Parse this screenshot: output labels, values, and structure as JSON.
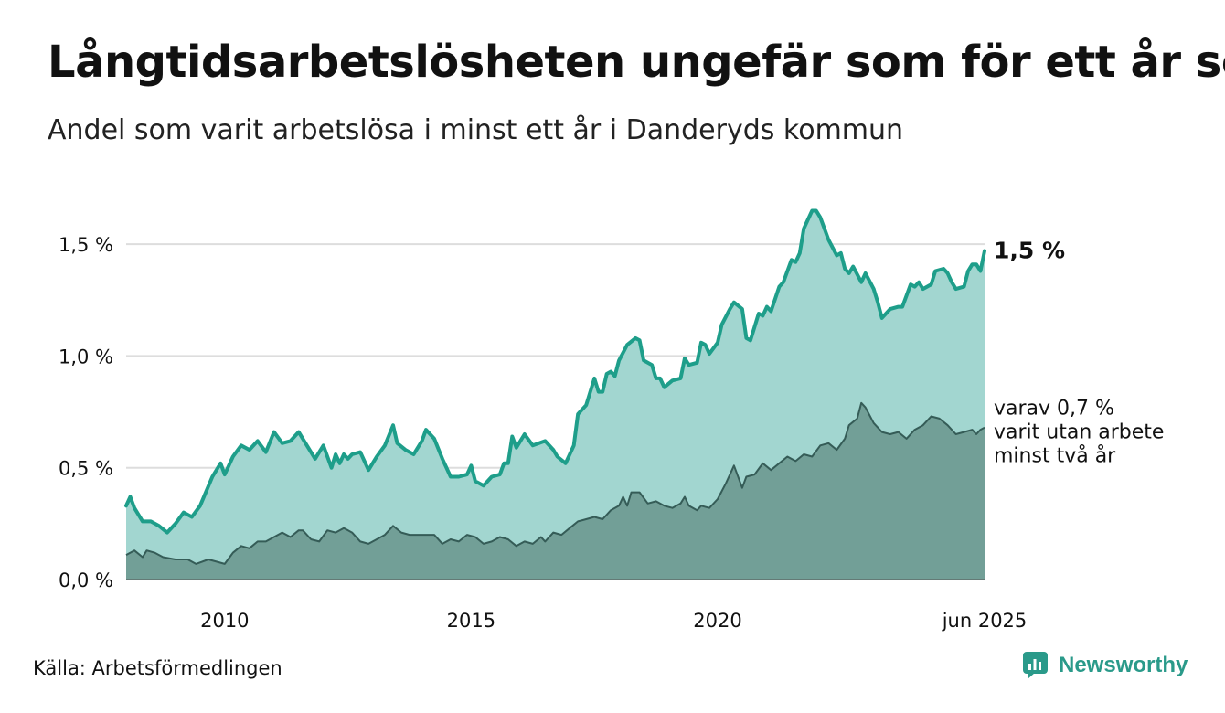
{
  "title": "Långtidsarbetslösheten ungefär som för ett år sen",
  "subtitle": "Andel som varit arbetslösa i minst ett år i Danderyds kommun",
  "source": "Källa: Arbetsförmedlingen",
  "brand": "Newsworthy",
  "colors": {
    "main_line": "#1e9e8a",
    "main_fill": "#a2d6d0",
    "sub_fill": "#729f97",
    "sub_line": "#355c57",
    "grid": "#dddddd"
  },
  "chart_data": {
    "type": "area",
    "x_start": "2008-01",
    "x_end": "2025-06",
    "x_step": "month",
    "ylim": [
      0,
      1.75
    ],
    "yticks": [
      0,
      0.5,
      1.0,
      1.5
    ],
    "ytick_labels": [
      "0,0 %",
      "0,5 %",
      "1,0 %",
      "1,5 %"
    ],
    "xticks": [
      "2010-01",
      "2015-01",
      "2020-01",
      "2025-06"
    ],
    "xtick_labels": [
      "2010",
      "2015",
      "2020",
      "jun 2025"
    ],
    "grid": "horizontal",
    "series": [
      {
        "end_label": "1,5 %",
        "points": [
          [
            "2008-01",
            0.33
          ],
          [
            "2008-02",
            0.37
          ],
          [
            "2008-03",
            0.32
          ],
          [
            "2008-05",
            0.26
          ],
          [
            "2008-07",
            0.26
          ],
          [
            "2008-09",
            0.24
          ],
          [
            "2008-11",
            0.21
          ],
          [
            "2009-01",
            0.25
          ],
          [
            "2009-03",
            0.3
          ],
          [
            "2009-05",
            0.28
          ],
          [
            "2009-07",
            0.33
          ],
          [
            "2009-10",
            0.46
          ],
          [
            "2009-12",
            0.52
          ],
          [
            "2010-01",
            0.47
          ],
          [
            "2010-03",
            0.55
          ],
          [
            "2010-05",
            0.6
          ],
          [
            "2010-07",
            0.58
          ],
          [
            "2010-09",
            0.62
          ],
          [
            "2010-11",
            0.57
          ],
          [
            "2011-01",
            0.66
          ],
          [
            "2011-03",
            0.61
          ],
          [
            "2011-05",
            0.62
          ],
          [
            "2011-07",
            0.66
          ],
          [
            "2011-09",
            0.6
          ],
          [
            "2011-11",
            0.54
          ],
          [
            "2012-01",
            0.6
          ],
          [
            "2012-03",
            0.5
          ],
          [
            "2012-04",
            0.56
          ],
          [
            "2012-05",
            0.52
          ],
          [
            "2012-06",
            0.56
          ],
          [
            "2012-07",
            0.54
          ],
          [
            "2012-08",
            0.56
          ],
          [
            "2012-10",
            0.57
          ],
          [
            "2012-12",
            0.49
          ],
          [
            "2013-02",
            0.55
          ],
          [
            "2013-04",
            0.6
          ],
          [
            "2013-06",
            0.69
          ],
          [
            "2013-07",
            0.61
          ],
          [
            "2013-09",
            0.58
          ],
          [
            "2013-11",
            0.56
          ],
          [
            "2014-01",
            0.62
          ],
          [
            "2014-02",
            0.67
          ],
          [
            "2014-04",
            0.63
          ],
          [
            "2014-06",
            0.54
          ],
          [
            "2014-08",
            0.46
          ],
          [
            "2014-10",
            0.46
          ],
          [
            "2014-12",
            0.47
          ],
          [
            "2015-01",
            0.51
          ],
          [
            "2015-02",
            0.44
          ],
          [
            "2015-04",
            0.42
          ],
          [
            "2015-06",
            0.46
          ],
          [
            "2015-08",
            0.47
          ],
          [
            "2015-09",
            0.52
          ],
          [
            "2015-10",
            0.52
          ],
          [
            "2015-11",
            0.64
          ],
          [
            "2015-12",
            0.59
          ],
          [
            "2016-02",
            0.65
          ],
          [
            "2016-04",
            0.6
          ],
          [
            "2016-07",
            0.62
          ],
          [
            "2016-09",
            0.58
          ],
          [
            "2016-10",
            0.55
          ],
          [
            "2016-12",
            0.52
          ],
          [
            "2017-02",
            0.6
          ],
          [
            "2017-03",
            0.74
          ],
          [
            "2017-05",
            0.78
          ],
          [
            "2017-07",
            0.9
          ],
          [
            "2017-08",
            0.84
          ],
          [
            "2017-09",
            0.84
          ],
          [
            "2017-10",
            0.92
          ],
          [
            "2017-11",
            0.93
          ],
          [
            "2017-12",
            0.91
          ],
          [
            "2018-01",
            0.98
          ],
          [
            "2018-03",
            1.05
          ],
          [
            "2018-05",
            1.08
          ],
          [
            "2018-06",
            1.07
          ],
          [
            "2018-07",
            0.98
          ],
          [
            "2018-09",
            0.96
          ],
          [
            "2018-10",
            0.9
          ],
          [
            "2018-11",
            0.9
          ],
          [
            "2018-12",
            0.86
          ],
          [
            "2019-02",
            0.89
          ],
          [
            "2019-04",
            0.9
          ],
          [
            "2019-05",
            0.99
          ],
          [
            "2019-06",
            0.96
          ],
          [
            "2019-08",
            0.97
          ],
          [
            "2019-09",
            1.06
          ],
          [
            "2019-10",
            1.05
          ],
          [
            "2019-11",
            1.01
          ],
          [
            "2020-01",
            1.06
          ],
          [
            "2020-02",
            1.14
          ],
          [
            "2020-04",
            1.21
          ],
          [
            "2020-05",
            1.24
          ],
          [
            "2020-07",
            1.21
          ],
          [
            "2020-08",
            1.08
          ],
          [
            "2020-09",
            1.07
          ],
          [
            "2020-11",
            1.19
          ],
          [
            "2020-12",
            1.18
          ],
          [
            "2021-01",
            1.22
          ],
          [
            "2021-02",
            1.2
          ],
          [
            "2021-04",
            1.31
          ],
          [
            "2021-05",
            1.33
          ],
          [
            "2021-07",
            1.43
          ],
          [
            "2021-08",
            1.42
          ],
          [
            "2021-09",
            1.46
          ],
          [
            "2021-10",
            1.57
          ],
          [
            "2021-12",
            1.65
          ],
          [
            "2022-01",
            1.65
          ],
          [
            "2022-02",
            1.62
          ],
          [
            "2022-04",
            1.52
          ],
          [
            "2022-06",
            1.45
          ],
          [
            "2022-07",
            1.46
          ],
          [
            "2022-08",
            1.39
          ],
          [
            "2022-09",
            1.37
          ],
          [
            "2022-10",
            1.4
          ],
          [
            "2022-12",
            1.33
          ],
          [
            "2023-01",
            1.37
          ],
          [
            "2023-03",
            1.3
          ],
          [
            "2023-04",
            1.24
          ],
          [
            "2023-05",
            1.17
          ],
          [
            "2023-07",
            1.21
          ],
          [
            "2023-09",
            1.22
          ],
          [
            "2023-10",
            1.22
          ],
          [
            "2023-12",
            1.32
          ],
          [
            "2024-01",
            1.31
          ],
          [
            "2024-02",
            1.33
          ],
          [
            "2024-03",
            1.3
          ],
          [
            "2024-05",
            1.32
          ],
          [
            "2024-06",
            1.38
          ],
          [
            "2024-08",
            1.39
          ],
          [
            "2024-09",
            1.37
          ],
          [
            "2024-10",
            1.33
          ],
          [
            "2024-11",
            1.3
          ],
          [
            "2025-01",
            1.31
          ],
          [
            "2025-02",
            1.38
          ],
          [
            "2025-03",
            1.41
          ],
          [
            "2025-04",
            1.41
          ],
          [
            "2025-05",
            1.38
          ],
          [
            "2025-06",
            1.47
          ]
        ]
      },
      {
        "end_label": [
          "varav 0,7 %",
          "varit utan arbete",
          "minst två år"
        ],
        "points": [
          [
            "2008-01",
            0.11
          ],
          [
            "2008-03",
            0.13
          ],
          [
            "2008-05",
            0.1
          ],
          [
            "2008-06",
            0.13
          ],
          [
            "2008-08",
            0.12
          ],
          [
            "2008-10",
            0.1
          ],
          [
            "2009-01",
            0.09
          ],
          [
            "2009-04",
            0.09
          ],
          [
            "2009-06",
            0.07
          ],
          [
            "2009-09",
            0.09
          ],
          [
            "2009-11",
            0.08
          ],
          [
            "2010-01",
            0.07
          ],
          [
            "2010-03",
            0.12
          ],
          [
            "2010-05",
            0.15
          ],
          [
            "2010-07",
            0.14
          ],
          [
            "2010-09",
            0.17
          ],
          [
            "2010-11",
            0.17
          ],
          [
            "2011-01",
            0.19
          ],
          [
            "2011-03",
            0.21
          ],
          [
            "2011-05",
            0.19
          ],
          [
            "2011-07",
            0.22
          ],
          [
            "2011-08",
            0.22
          ],
          [
            "2011-10",
            0.18
          ],
          [
            "2011-12",
            0.17
          ],
          [
            "2012-02",
            0.22
          ],
          [
            "2012-04",
            0.21
          ],
          [
            "2012-06",
            0.23
          ],
          [
            "2012-08",
            0.21
          ],
          [
            "2012-10",
            0.17
          ],
          [
            "2012-12",
            0.16
          ],
          [
            "2013-02",
            0.18
          ],
          [
            "2013-04",
            0.2
          ],
          [
            "2013-06",
            0.24
          ],
          [
            "2013-08",
            0.21
          ],
          [
            "2013-10",
            0.2
          ],
          [
            "2013-12",
            0.2
          ],
          [
            "2014-04",
            0.2
          ],
          [
            "2014-06",
            0.16
          ],
          [
            "2014-08",
            0.18
          ],
          [
            "2014-10",
            0.17
          ],
          [
            "2014-12",
            0.2
          ],
          [
            "2015-02",
            0.19
          ],
          [
            "2015-04",
            0.16
          ],
          [
            "2015-06",
            0.17
          ],
          [
            "2015-08",
            0.19
          ],
          [
            "2015-10",
            0.18
          ],
          [
            "2015-12",
            0.15
          ],
          [
            "2016-02",
            0.17
          ],
          [
            "2016-04",
            0.16
          ],
          [
            "2016-06",
            0.19
          ],
          [
            "2016-07",
            0.17
          ],
          [
            "2016-09",
            0.21
          ],
          [
            "2016-11",
            0.2
          ],
          [
            "2017-01",
            0.23
          ],
          [
            "2017-03",
            0.26
          ],
          [
            "2017-05",
            0.27
          ],
          [
            "2017-07",
            0.28
          ],
          [
            "2017-09",
            0.27
          ],
          [
            "2017-11",
            0.31
          ],
          [
            "2018-01",
            0.33
          ],
          [
            "2018-02",
            0.37
          ],
          [
            "2018-03",
            0.33
          ],
          [
            "2018-04",
            0.39
          ],
          [
            "2018-06",
            0.39
          ],
          [
            "2018-08",
            0.34
          ],
          [
            "2018-10",
            0.35
          ],
          [
            "2018-12",
            0.33
          ],
          [
            "2019-02",
            0.32
          ],
          [
            "2019-04",
            0.34
          ],
          [
            "2019-05",
            0.37
          ],
          [
            "2019-06",
            0.33
          ],
          [
            "2019-08",
            0.31
          ],
          [
            "2019-09",
            0.33
          ],
          [
            "2019-11",
            0.32
          ],
          [
            "2020-01",
            0.36
          ],
          [
            "2020-03",
            0.43
          ],
          [
            "2020-05",
            0.51
          ],
          [
            "2020-07",
            0.41
          ],
          [
            "2020-08",
            0.46
          ],
          [
            "2020-10",
            0.47
          ],
          [
            "2020-12",
            0.52
          ],
          [
            "2021-02",
            0.49
          ],
          [
            "2021-04",
            0.52
          ],
          [
            "2021-06",
            0.55
          ],
          [
            "2021-08",
            0.53
          ],
          [
            "2021-10",
            0.56
          ],
          [
            "2021-12",
            0.55
          ],
          [
            "2022-02",
            0.6
          ],
          [
            "2022-04",
            0.61
          ],
          [
            "2022-06",
            0.58
          ],
          [
            "2022-08",
            0.63
          ],
          [
            "2022-09",
            0.69
          ],
          [
            "2022-11",
            0.72
          ],
          [
            "2022-12",
            0.79
          ],
          [
            "2023-01",
            0.77
          ],
          [
            "2023-03",
            0.7
          ],
          [
            "2023-05",
            0.66
          ],
          [
            "2023-07",
            0.65
          ],
          [
            "2023-09",
            0.66
          ],
          [
            "2023-11",
            0.63
          ],
          [
            "2024-01",
            0.67
          ],
          [
            "2024-03",
            0.69
          ],
          [
            "2024-05",
            0.73
          ],
          [
            "2024-07",
            0.72
          ],
          [
            "2024-09",
            0.69
          ],
          [
            "2024-11",
            0.65
          ],
          [
            "2025-01",
            0.66
          ],
          [
            "2025-03",
            0.67
          ],
          [
            "2025-04",
            0.65
          ],
          [
            "2025-05",
            0.67
          ],
          [
            "2025-06",
            0.68
          ]
        ]
      }
    ]
  }
}
